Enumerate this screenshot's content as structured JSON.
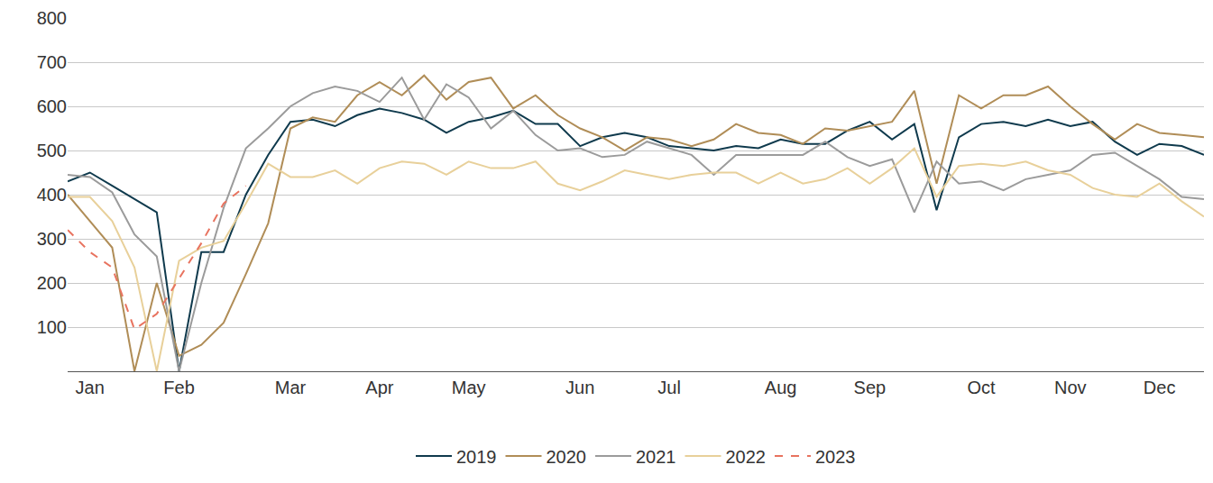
{
  "chart_data": {
    "type": "line",
    "categories": [
      null,
      "Jan",
      null,
      null,
      null,
      "Feb",
      null,
      null,
      null,
      null,
      "Mar",
      null,
      null,
      null,
      "Apr",
      null,
      null,
      null,
      "May",
      null,
      null,
      null,
      null,
      "Jun",
      null,
      null,
      null,
      "Jul",
      null,
      null,
      null,
      null,
      "Aug",
      null,
      null,
      null,
      "Sep",
      null,
      null,
      null,
      null,
      "Oct",
      null,
      null,
      null,
      "Nov",
      null,
      null,
      null,
      "Dec",
      null,
      null
    ],
    "series": [
      {
        "name": "2019",
        "color": "#0f3a4d",
        "line_style": "solid",
        "values": [
          430,
          450,
          420,
          390,
          360,
          0,
          270,
          270,
          400,
          490,
          565,
          570,
          555,
          580,
          595,
          585,
          570,
          540,
          565,
          575,
          590,
          560,
          560,
          510,
          530,
          540,
          530,
          510,
          505,
          500,
          510,
          505,
          525,
          515,
          515,
          545,
          565,
          525,
          560,
          365,
          530,
          560,
          565,
          555,
          570,
          555,
          565,
          520,
          490,
          515,
          510,
          490
        ]
      },
      {
        "name": "2020",
        "color": "#b08d57",
        "line_style": "solid",
        "values": [
          400,
          340,
          280,
          0,
          200,
          35,
          60,
          110,
          220,
          335,
          550,
          575,
          565,
          625,
          655,
          625,
          670,
          615,
          655,
          665,
          595,
          625,
          580,
          550,
          530,
          500,
          530,
          525,
          510,
          525,
          560,
          540,
          535,
          515,
          550,
          545,
          555,
          565,
          635,
          425,
          625,
          595,
          625,
          625,
          645,
          600,
          560,
          525,
          560,
          540,
          535,
          530
        ]
      },
      {
        "name": "2021",
        "color": "#9b9b9b",
        "line_style": "solid",
        "values": [
          445,
          440,
          405,
          310,
          260,
          0,
          200,
          370,
          505,
          550,
          600,
          630,
          645,
          635,
          610,
          665,
          570,
          650,
          620,
          550,
          590,
          535,
          500,
          505,
          485,
          490,
          520,
          505,
          490,
          445,
          490,
          490,
          490,
          490,
          520,
          485,
          465,
          480,
          360,
          475,
          425,
          430,
          410,
          435,
          445,
          455,
          490,
          495,
          465,
          435,
          395,
          390
        ]
      },
      {
        "name": "2022",
        "color": "#e8d09a",
        "line_style": "solid",
        "values": [
          395,
          395,
          340,
          235,
          0,
          250,
          280,
          295,
          380,
          470,
          440,
          440,
          455,
          425,
          460,
          475,
          470,
          445,
          475,
          460,
          460,
          475,
          425,
          410,
          430,
          455,
          445,
          435,
          445,
          450,
          450,
          425,
          450,
          425,
          435,
          460,
          425,
          460,
          505,
          395,
          465,
          470,
          465,
          475,
          455,
          445,
          415,
          400,
          395,
          425,
          385,
          350
        ]
      },
      {
        "name": "2023",
        "color": "#e8735f",
        "line_style": "dashed",
        "values": [
          320,
          270,
          235,
          95,
          130,
          210,
          290,
          380,
          420,
          null,
          null,
          null,
          null,
          null,
          null,
          null,
          null,
          null,
          null,
          null,
          null,
          null,
          null,
          null,
          null,
          null,
          null,
          null,
          null,
          null,
          null,
          null,
          null,
          null,
          null,
          null,
          null,
          null,
          null,
          null,
          null,
          null,
          null,
          null,
          null,
          null,
          null,
          null,
          null,
          null,
          null,
          null
        ]
      }
    ],
    "ylim": [
      0,
      800
    ],
    "yticks": [
      100,
      200,
      300,
      400,
      500,
      600,
      700,
      800
    ],
    "grid": true,
    "legend": "bottom"
  }
}
